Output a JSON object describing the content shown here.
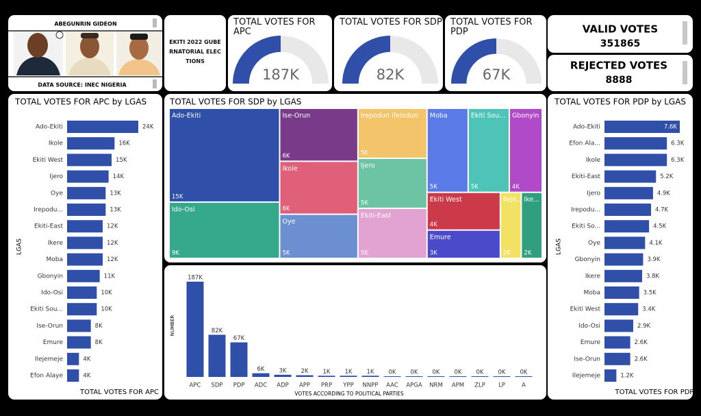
{
  "header": {
    "candidate_name": "ABEGUNRIN GIDEON",
    "data_source": "DATA SOURCE: INEC NIGERIA",
    "title": "EKITI 2022 GUBERNATORIAL ELECTIONS"
  },
  "cards": [
    {
      "label": "VALID VOTES",
      "value": 351865
    },
    {
      "label": "REJECTED VOTES",
      "value": 8888
    }
  ],
  "chart_data": [
    {
      "type": "gauge",
      "title": "TOTAL VOTES FOR APC",
      "values": [
        187000
      ],
      "value_labels": [
        "187K"
      ],
      "lim": [
        0,
        374000
      ],
      "color": "#2f4fa8"
    },
    {
      "type": "gauge",
      "title": "TOTAL VOTES FOR SDP",
      "values": [
        82000
      ],
      "value_labels": [
        "82K"
      ],
      "lim": [
        0,
        164000
      ],
      "color": "#2f4fa8"
    },
    {
      "type": "gauge",
      "title": "TOTAL VOTES FOR PDP",
      "values": [
        67000
      ],
      "value_labels": [
        "67K"
      ],
      "lim": [
        0,
        134000
      ],
      "color": "#2f4fa8"
    },
    {
      "type": "hbar",
      "title": "TOTAL VOTES FOR APC by LGAS",
      "y_label": "LGAS",
      "x_label": "TOTAL VOTES FOR APC",
      "color": "#2f4fa8",
      "categories": [
        "Ado-Ekiti",
        "Ikole",
        "Ekiti West",
        "Ijero",
        "Oye",
        "Irepodu...",
        "Ekiti-East",
        "Ikere",
        "Moba",
        "Gbonyin",
        "Ido-Osi",
        "Ekiti Sou...",
        "Ise-Orun",
        "Emure",
        "Ilejemeje",
        "Efon Alaye"
      ],
      "values": [
        24000,
        16000,
        15000,
        14000,
        13000,
        13000,
        12000,
        12000,
        12000,
        11000,
        10000,
        10000,
        8000,
        8000,
        4000,
        4000
      ],
      "value_labels": [
        "24K",
        "16K",
        "15K",
        "14K",
        "13K",
        "13K",
        "12K",
        "12K",
        "12K",
        "11K",
        "10K",
        "10K",
        "8K",
        "8K",
        "4K",
        "4K"
      ]
    },
    {
      "type": "treemap",
      "title": "TOTAL VOTES FOR SDP by LGAS",
      "categories": [
        "Ado-Ekiti",
        "Ido-Osi",
        "Ise-Orun",
        "Ikole",
        "Oye",
        "Irepodun Ifelodun",
        "Ijero",
        "Ekiti-East",
        "Moba",
        "Ekiti Sou...",
        "Gbonyin",
        "Ekiti West",
        "Emure",
        "Ileje...",
        "Ike..."
      ],
      "values": [
        15000,
        9000,
        6000,
        6000,
        5000,
        5000,
        5000,
        5000,
        5000,
        5000,
        4000,
        4000,
        3000,
        2000,
        2000
      ],
      "value_labels": [
        "15K",
        "9K",
        "6K",
        "6K",
        "5K",
        "5K",
        "5K",
        "5K",
        "5K",
        "5K",
        "4K",
        "4K",
        "3K",
        "2K",
        "2K"
      ],
      "colors": [
        "#2f4fa8",
        "#36a88c",
        "#7a3a8a",
        "#e0607a",
        "#6b8fd0",
        "#f4c46a",
        "#6cc4a4",
        "#e2a2d2",
        "#5b7ce8",
        "#4ec4b8",
        "#b04ac8",
        "#cc3a4a",
        "#4a4acb",
        "#f2e162",
        "#2f9f80"
      ]
    },
    {
      "type": "vbar",
      "y_label": "NUMBER",
      "x_label": "VOTES ACCORDING TO POLITICAL PARTIES",
      "color": "#2f4fa8",
      "categories": [
        "APC",
        "SDP",
        "PDP",
        "ADC",
        "ADP",
        "APP",
        "PRP",
        "YPP",
        "NNPP",
        "AAC",
        "APGA",
        "NRM",
        "APM",
        "ZLP",
        "LP",
        "A"
      ],
      "values": [
        187000,
        82000,
        67000,
        6000,
        3000,
        2000,
        1000,
        1000,
        1000,
        0,
        0,
        0,
        0,
        0,
        0,
        0
      ],
      "value_labels": [
        "187K",
        "82K",
        "67K",
        "6K",
        "3K",
        "2K",
        "1K",
        "1K",
        "1K",
        "0K",
        "0K",
        "0K",
        "0K",
        "0K",
        "0K",
        "0K"
      ]
    },
    {
      "type": "hbar",
      "title": "TOTAL VOTES FOR PDP by LGAS",
      "y_label": "LGAS",
      "x_label": "TOTAL VOTES FOR PDP",
      "color": "#2f4fa8",
      "categories": [
        "Ado-Ekiti",
        "Efon Ala...",
        "Ikole",
        "Ekiti-East",
        "Ijero",
        "Irepodu...",
        "Ekiti So...",
        "Oye",
        "Gbonyin",
        "Ikere",
        "Moba",
        "Ekiti West",
        "Ido-Osi",
        "Emure",
        "Ise-Orun",
        "Ilejemeje"
      ],
      "values": [
        7600,
        6300,
        6300,
        5200,
        4900,
        4700,
        4500,
        4100,
        3900,
        3800,
        3500,
        3400,
        2900,
        2600,
        2600,
        1200
      ],
      "value_labels": [
        "7.6K",
        "6.3K",
        "6.3K",
        "5.2K",
        "4.9K",
        "4.7K",
        "4.5K",
        "4.1K",
        "3.9K",
        "3.8K",
        "3.5K",
        "3.4K",
        "2.9K",
        "2.6K",
        "2.6K",
        "1.2K"
      ]
    }
  ]
}
